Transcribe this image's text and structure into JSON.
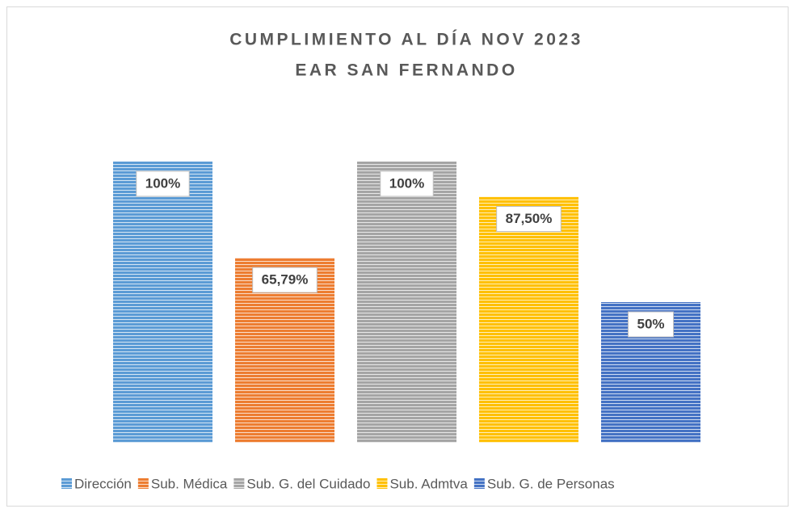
{
  "chart_data": {
    "type": "bar",
    "title": "CUMPLIMIENTO AL DÍA NOV 2023",
    "subtitle": "EAR SAN FERNANDO",
    "categories": [
      "Dirección",
      "Sub. Médica",
      "Sub. G. del Cuidado",
      "Sub. Admtva",
      "Sub. G. de Personas"
    ],
    "values": [
      100,
      65.79,
      100,
      87.5,
      50
    ],
    "value_labels": [
      "100%",
      "65,79%",
      "100%",
      "87,50%",
      "50%"
    ],
    "colors": [
      "#5b9bd5",
      "#ed7d31",
      "#a5a5a5",
      "#ffc000",
      "#4472c4"
    ],
    "ylim": [
      0,
      100
    ]
  }
}
